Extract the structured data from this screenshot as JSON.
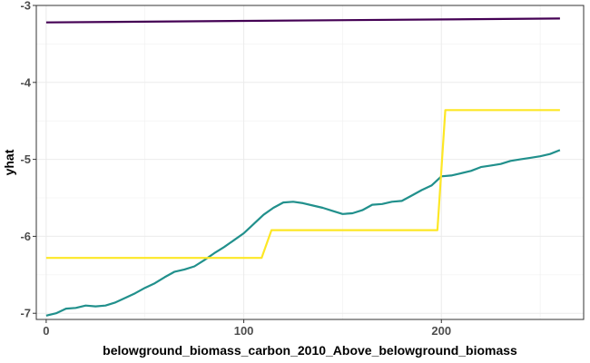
{
  "chart_data": {
    "type": "line",
    "title": "",
    "xlabel": "belowground_biomass_carbon_2010_Above_belowground_biomass",
    "ylabel": "yhat",
    "xlim": [
      -5,
      272
    ],
    "ylim": [
      -7.08,
      -3.0
    ],
    "x_ticks": [
      0,
      100,
      200
    ],
    "y_ticks": [
      -7,
      -6,
      -5,
      -4,
      -3
    ],
    "x_tick_labels": [
      "0",
      "100",
      "200"
    ],
    "y_tick_labels": [
      "-7",
      "-6",
      "-5",
      "-4",
      "-3"
    ],
    "grid": true,
    "legend": "none",
    "series": [
      {
        "color": "#440154",
        "x": [
          0,
          260
        ],
        "y": [
          -3.22,
          -3.17
        ]
      },
      {
        "color": "#21908c",
        "x": [
          0,
          5,
          10,
          15,
          20,
          25,
          30,
          35,
          40,
          45,
          50,
          55,
          60,
          65,
          70,
          75,
          80,
          85,
          90,
          95,
          100,
          105,
          110,
          115,
          120,
          125,
          130,
          135,
          140,
          145,
          150,
          155,
          160,
          165,
          170,
          175,
          180,
          185,
          190,
          195,
          200,
          205,
          210,
          215,
          220,
          225,
          230,
          235,
          240,
          245,
          250,
          255,
          260
        ],
        "y": [
          -7.03,
          -7.0,
          -6.94,
          -6.93,
          -6.9,
          -6.91,
          -6.9,
          -6.86,
          -6.8,
          -6.74,
          -6.67,
          -6.61,
          -6.53,
          -6.46,
          -6.43,
          -6.39,
          -6.31,
          -6.22,
          -6.14,
          -6.05,
          -5.96,
          -5.84,
          -5.72,
          -5.63,
          -5.56,
          -5.55,
          -5.57,
          -5.6,
          -5.63,
          -5.67,
          -5.71,
          -5.7,
          -5.66,
          -5.59,
          -5.58,
          -5.55,
          -5.54,
          -5.47,
          -5.4,
          -5.34,
          -5.22,
          -5.21,
          -5.18,
          -5.15,
          -5.1,
          -5.08,
          -5.06,
          -5.02,
          -5.0,
          -4.98,
          -4.96,
          -4.93,
          -4.88
        ]
      },
      {
        "color": "#fde725",
        "x": [
          0,
          109,
          114,
          198,
          202,
          260
        ],
        "y": [
          -6.28,
          -6.28,
          -5.92,
          -5.92,
          -4.36,
          -4.36
        ]
      }
    ]
  }
}
